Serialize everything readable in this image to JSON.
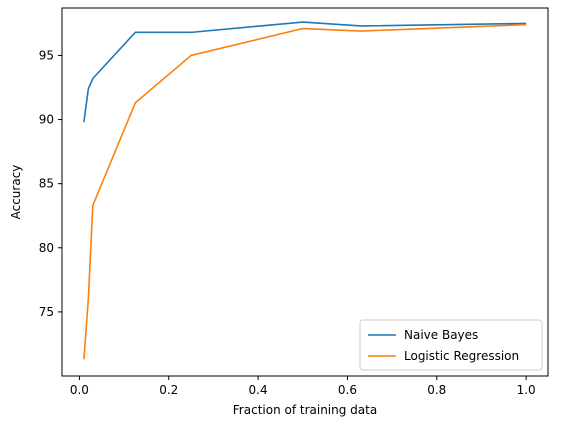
{
  "chart_data": {
    "type": "line",
    "title": "",
    "xlabel": "Fraction of training data",
    "ylabel": "Accuracy",
    "xlim": [
      -0.039,
      1.049
    ],
    "ylim": [
      70.0,
      98.7
    ],
    "xticks": [
      0.0,
      0.2,
      0.4,
      0.6,
      0.8,
      1.0
    ],
    "xtick_labels": [
      "0.0",
      "0.2",
      "0.4",
      "0.6",
      "0.8",
      "1.0"
    ],
    "yticks": [
      75,
      80,
      85,
      90,
      95
    ],
    "ytick_labels": [
      "75",
      "80",
      "85",
      "90",
      "95"
    ],
    "grid": false,
    "legend_position": "lower-right",
    "series": [
      {
        "name": "Naive Bayes",
        "color": "#1f77b4",
        "x": [
          0.01,
          0.02,
          0.03,
          0.125,
          0.25,
          0.5,
          0.63,
          1.0
        ],
        "y": [
          89.8,
          92.4,
          93.2,
          96.8,
          96.8,
          97.6,
          97.3,
          97.5
        ]
      },
      {
        "name": "Logistic Regression",
        "color": "#ff7f0e",
        "x": [
          0.01,
          0.02,
          0.03,
          0.125,
          0.25,
          0.5,
          0.63,
          1.0
        ],
        "y": [
          71.3,
          76.0,
          83.3,
          91.3,
          95.0,
          97.1,
          96.9,
          97.4
        ]
      }
    ]
  }
}
